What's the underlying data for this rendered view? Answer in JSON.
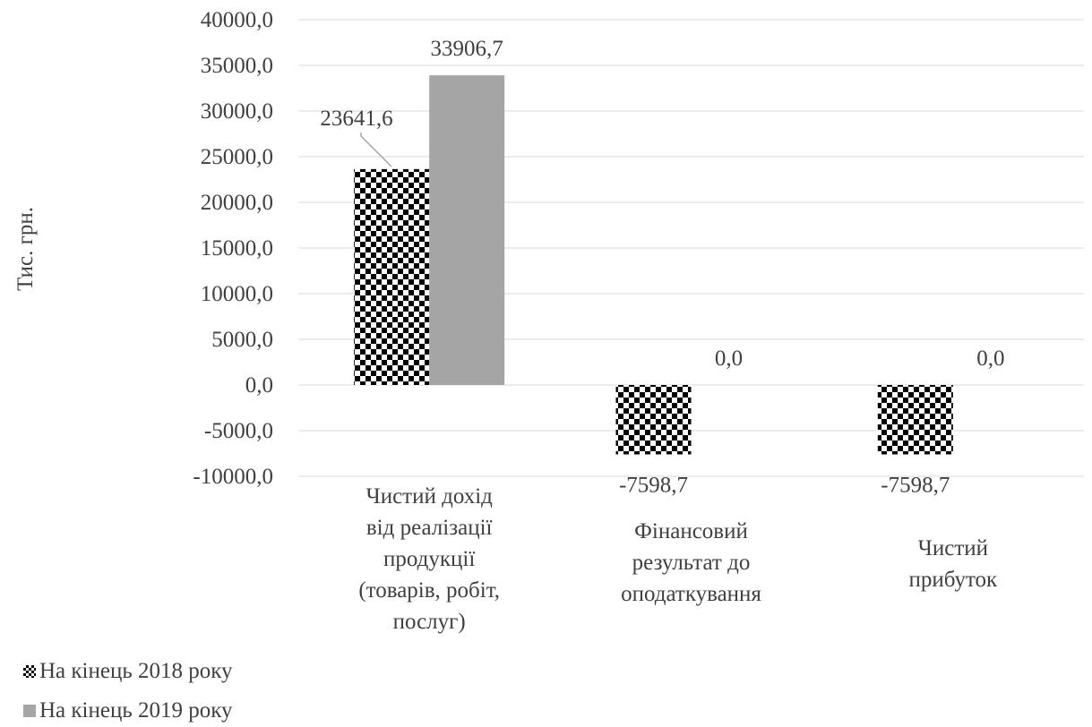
{
  "chart_data": {
    "type": "bar",
    "ylabel": "Тис. грн.",
    "ylim": [
      -10000,
      40000
    ],
    "yticks": [
      "40000,0",
      "35000,0",
      "30000,0",
      "25000,0",
      "20000,0",
      "15000,0",
      "10000,0",
      "5000,0",
      "0,0",
      "-5000,0",
      "-10000,0"
    ],
    "grid": true,
    "legend_position": "bottom-left",
    "categories": [
      [
        "Чистий дохід",
        "від реалізації",
        "продукції",
        "(товарів, робіт,",
        "послуг)"
      ],
      [
        "Фінансовий",
        "результат до",
        "оподаткування"
      ],
      [
        "Чистий",
        "прибуток"
      ]
    ],
    "series": [
      {
        "name": "На кінець 2018 року",
        "pattern": "checker",
        "color": "#000000",
        "values": [
          23641.6,
          -7598.7,
          -7598.7
        ],
        "labels": [
          "23641,6",
          "-7598,7",
          "-7598,7"
        ]
      },
      {
        "name": "На кінець 2019 року",
        "pattern": "solid",
        "color": "#a5a5a5",
        "values": [
          33906.7,
          0.0,
          0.0
        ],
        "labels": [
          "33906,7",
          "0,0",
          "0,0"
        ]
      }
    ]
  }
}
